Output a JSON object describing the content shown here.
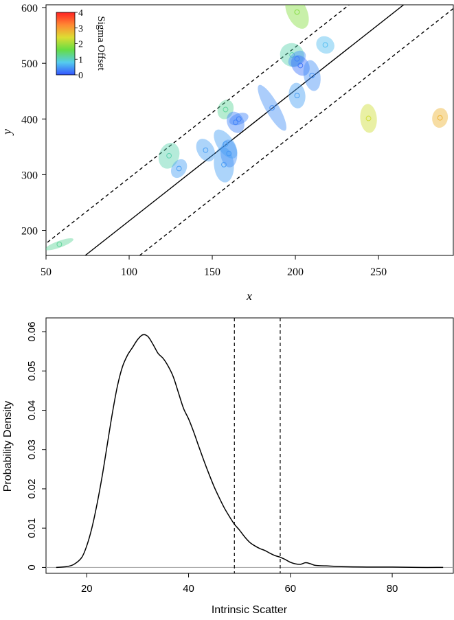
{
  "chart_data": [
    {
      "type": "scatter",
      "xlabel": "x",
      "ylabel": "y",
      "xlim": [
        50,
        295
      ],
      "ylim": [
        155,
        605
      ],
      "xticks": [
        50,
        100,
        150,
        200,
        250
      ],
      "yticks": [
        200,
        300,
        400,
        500,
        600
      ],
      "colorbar": {
        "label": "Sigma Offset",
        "min": 0,
        "max": 4,
        "ticks": [
          0,
          1,
          2,
          3,
          4
        ],
        "colors": [
          "#3355ff",
          "#55ccee",
          "#66dd44",
          "#dddd33",
          "#ff8833",
          "#ff2222"
        ]
      },
      "lines": [
        {
          "style": "solid",
          "slope": 2.35,
          "intercept": -18
        },
        {
          "style": "dashed",
          "slope": 2.35,
          "intercept": 59
        },
        {
          "style": "dashed",
          "slope": 2.35,
          "intercept": -95
        }
      ],
      "points": [
        {
          "x": 58,
          "y": 175,
          "sx": 9,
          "sy": 6,
          "angle": 20,
          "offset": 1.2
        },
        {
          "x": 124,
          "y": 334,
          "sx": 8,
          "sy": 18,
          "angle": 70,
          "offset": 1.1
        },
        {
          "x": 130,
          "y": 311,
          "sx": 6,
          "sy": 13,
          "angle": 60,
          "offset": 0.5
        },
        {
          "x": 146,
          "y": 344,
          "sx": 5,
          "sy": 22,
          "angle": 30,
          "offset": 0.5
        },
        {
          "x": 157,
          "y": 318,
          "sx": 6,
          "sy": 32,
          "angle": 5,
          "offset": 0.5
        },
        {
          "x": 160,
          "y": 338,
          "sx": 5,
          "sy": 25,
          "angle": 5,
          "offset": 0.4
        },
        {
          "x": 158,
          "y": 355,
          "sx": 5,
          "sy": 30,
          "angle": 35,
          "offset": 0.5
        },
        {
          "x": 158,
          "y": 417,
          "sx": 6,
          "sy": 14,
          "angle": 70,
          "offset": 1.2
        },
        {
          "x": 164,
          "y": 394,
          "sx": 5,
          "sy": 20,
          "angle": 25,
          "offset": 0.3
        },
        {
          "x": 166,
          "y": 400,
          "sx": 6,
          "sy": 10,
          "angle": 20,
          "offset": 0.3
        },
        {
          "x": 186,
          "y": 420,
          "sx": 4,
          "sy": 47,
          "angle": 30,
          "offset": 0.4
        },
        {
          "x": 198,
          "y": 515,
          "sx": 7,
          "sy": 22,
          "angle": 55,
          "offset": 1.1
        },
        {
          "x": 201,
          "y": 442,
          "sx": 5,
          "sy": 23,
          "angle": 5,
          "offset": 0.5
        },
        {
          "x": 201,
          "y": 508,
          "sx": 6,
          "sy": 12,
          "angle": 40,
          "offset": 0.4
        },
        {
          "x": 203,
          "y": 496,
          "sx": 5,
          "sy": 20,
          "angle": 35,
          "offset": 0.2
        },
        {
          "x": 210,
          "y": 478,
          "sx": 5,
          "sy": 28,
          "angle": 10,
          "offset": 0.4
        },
        {
          "x": 201,
          "y": 592,
          "sx": 6,
          "sy": 32,
          "angle": 25,
          "offset": 1.8
        },
        {
          "x": 218,
          "y": 533,
          "sx": 5,
          "sy": 17,
          "angle": 55,
          "offset": 0.7
        },
        {
          "x": 244,
          "y": 401,
          "sx": 5,
          "sy": 26,
          "angle": 5,
          "offset": 2.3
        },
        {
          "x": 287,
          "y": 402,
          "sx": 6,
          "sy": 14,
          "angle": 80,
          "offset": 2.8
        }
      ]
    },
    {
      "type": "line",
      "xlabel": "Intrinsic Scatter",
      "ylabel": "Probability Density",
      "xlim": [
        12,
        92
      ],
      "ylim": [
        -0.0015,
        0.0635
      ],
      "xticks": [
        20,
        40,
        60,
        80
      ],
      "yticks": [
        0,
        0.01,
        0.02,
        0.03,
        0.04,
        0.05,
        0.06
      ],
      "ytick_labels": [
        "0",
        "0.01",
        "0.02",
        "0.03",
        "0.04",
        "0.05",
        "0.06"
      ],
      "vlines": [
        49,
        58
      ],
      "baseline": 0,
      "series": [
        {
          "x": [
            14,
            16,
            17.5,
            19,
            20,
            21,
            22,
            23,
            24,
            25,
            26,
            27,
            28,
            29,
            30,
            31,
            32,
            33,
            34,
            35,
            36,
            37,
            38,
            39,
            40,
            41,
            42,
            43,
            44,
            45,
            46,
            47,
            48,
            49,
            50,
            51,
            52,
            53,
            54,
            55,
            56,
            57,
            58,
            59,
            60,
            61,
            62,
            63,
            64,
            65,
            67,
            70,
            75,
            80,
            85,
            90
          ],
          "y": [
            0,
            0.0002,
            0.0008,
            0.0025,
            0.0055,
            0.01,
            0.016,
            0.023,
            0.031,
            0.039,
            0.046,
            0.051,
            0.054,
            0.056,
            0.058,
            0.0592,
            0.0588,
            0.0568,
            0.0545,
            0.0532,
            0.0512,
            0.0485,
            0.0445,
            0.0405,
            0.0378,
            0.0345,
            0.0308,
            0.0272,
            0.0238,
            0.0206,
            0.0178,
            0.0152,
            0.013,
            0.011,
            0.0095,
            0.0078,
            0.0064,
            0.0055,
            0.0048,
            0.0043,
            0.0036,
            0.003,
            0.0026,
            0.002,
            0.0013,
            0.0009,
            0.0008,
            0.0012,
            0.0009,
            0.0005,
            0.0004,
            0.0002,
            0.0001,
            0.0001,
            0.0,
            0.0
          ]
        }
      ]
    }
  ]
}
